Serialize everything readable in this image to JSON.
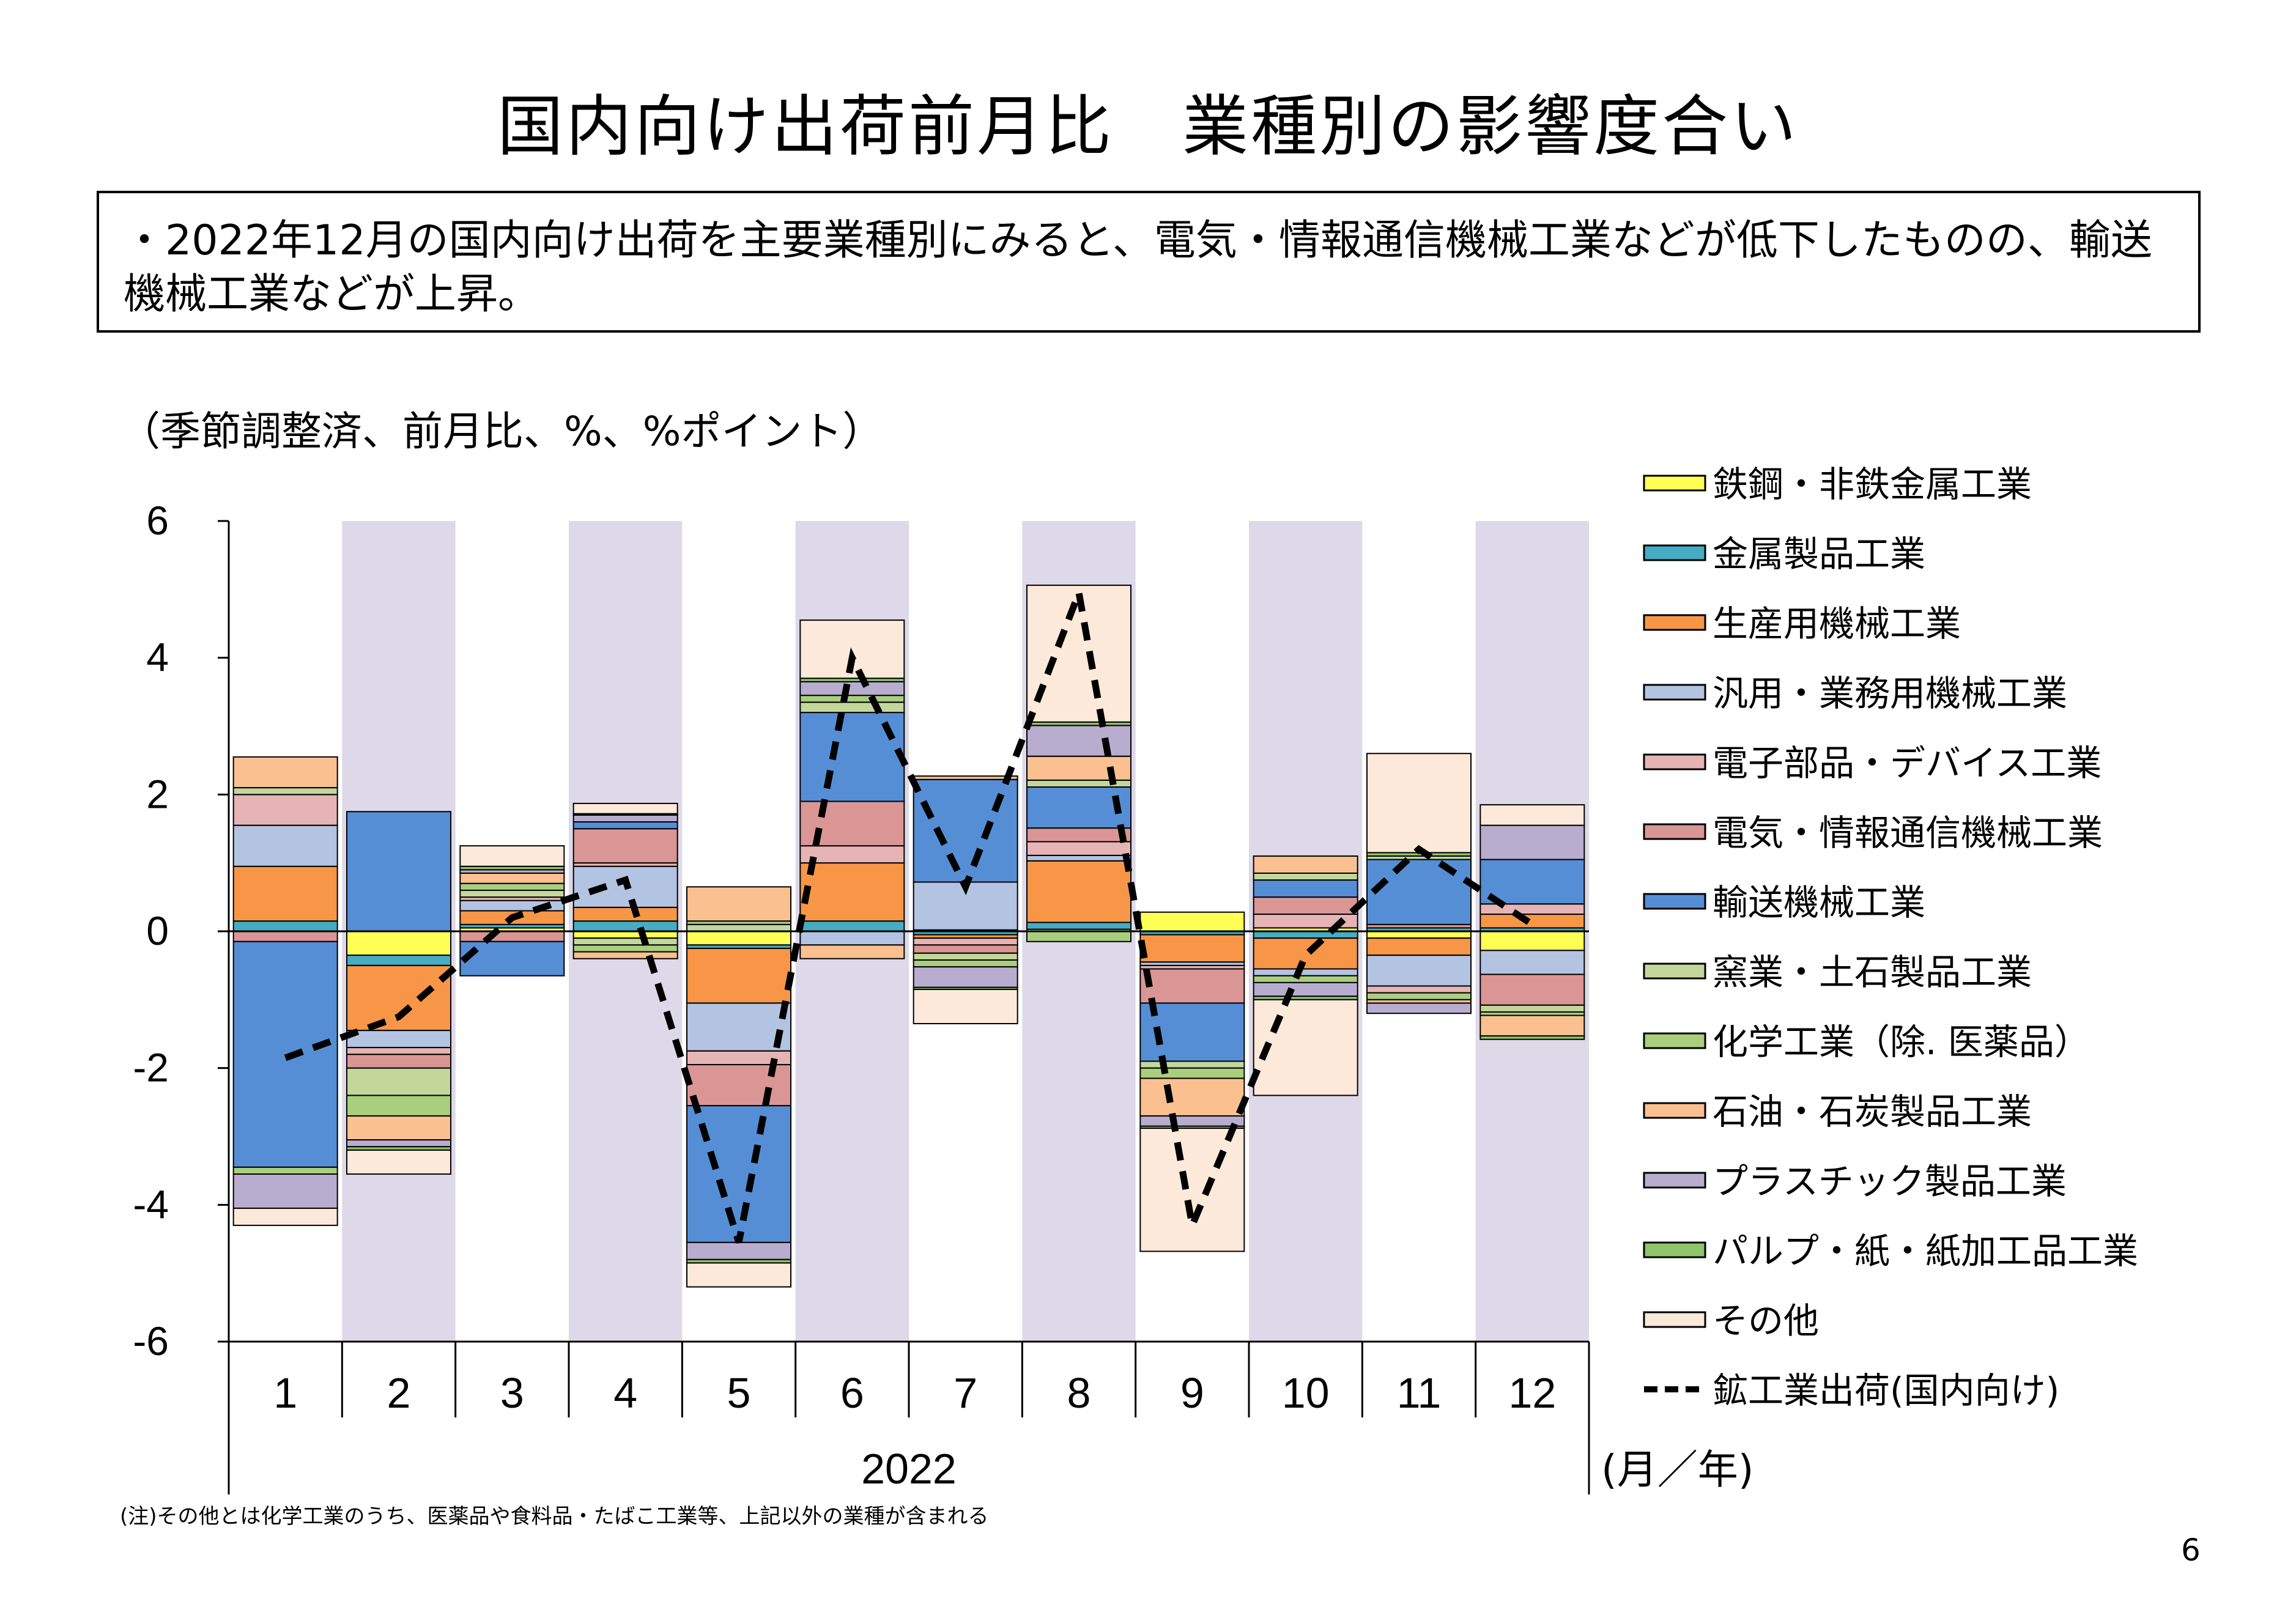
{
  "title": "国内向け出荷前月比　業種別の影響度合い",
  "summary": "・2022年12月の国内向け出荷を主要業種別にみると、電気・情報通信機械工業などが低下したものの、輸送機械工業などが上昇。",
  "unit_label": "（季節調整済、前月比、%、%ポイント）",
  "note": "(注)その他とは化学工業のうち、医薬品や食料品・たばこ工業等、上記以外の業種が含まれる",
  "page_number": "6",
  "chart_data": {
    "type": "bar",
    "stacked": true,
    "categories": [
      "1",
      "2",
      "3",
      "4",
      "5",
      "6",
      "7",
      "8",
      "9",
      "10",
      "11",
      "12"
    ],
    "year_label": "2022",
    "x_unit_label": "(月／年)",
    "ylim": [
      -6,
      6
    ],
    "yticks": [
      6,
      4,
      2,
      0,
      -2,
      -4,
      -6
    ],
    "grid": false,
    "legend_position": "right",
    "shaded_categories": [
      1,
      3,
      5,
      7,
      9,
      11
    ],
    "colors": {
      "shade": "#DDD9E8"
    },
    "series": [
      {
        "name": "鉄鋼・非鉄金属工業",
        "color": "#FFFF55",
        "values": [
          0,
          -0.35,
          0.05,
          -0.1,
          -0.2,
          0,
          0.02,
          0.03,
          0.28,
          0.05,
          -0.1,
          -0.28
        ]
      },
      {
        "name": "金属製品工業",
        "color": "#45ACC4",
        "values": [
          0.15,
          -0.15,
          0.05,
          0.15,
          -0.05,
          0.15,
          -0.05,
          0.1,
          -0.05,
          -0.1,
          0.05,
          0.05
        ]
      },
      {
        "name": "生産用機械工業",
        "color": "#F79646",
        "values": [
          0.8,
          -0.95,
          0.2,
          0.2,
          -0.8,
          0.85,
          -0.05,
          0.9,
          -0.4,
          -0.45,
          -0.25,
          0.2
        ]
      },
      {
        "name": "汎用・業務用機械工業",
        "color": "#B3C4E2",
        "values": [
          0.6,
          -0.25,
          0.15,
          0.6,
          -0.7,
          -0.2,
          0.7,
          0.08,
          -0.05,
          -0.1,
          -0.45,
          -0.35
        ]
      },
      {
        "name": "電子部品・デバイス工業",
        "color": "#E6B4B4",
        "values": [
          0.45,
          -0.1,
          0.05,
          0.05,
          -0.2,
          0.25,
          -0.1,
          0.2,
          -0.05,
          0.2,
          -0.1,
          0.15
        ]
      },
      {
        "name": "電気・情報通信機械工業",
        "color": "#DA9694",
        "values": [
          -0.15,
          -0.2,
          -0.15,
          0.5,
          -0.6,
          0.65,
          -0.12,
          0.2,
          -0.5,
          0.25,
          0.05,
          -0.45
        ]
      },
      {
        "name": "輸送機械工業",
        "color": "#558ED5",
        "values": [
          -3.3,
          1.75,
          -0.5,
          0.1,
          -2.0,
          1.3,
          1.5,
          0.6,
          -0.85,
          0.25,
          0.95,
          0.65
        ]
      },
      {
        "name": "窯業・土石製品工業",
        "color": "#C4D79B",
        "values": [
          0.1,
          -0.4,
          0.1,
          -0.1,
          0.1,
          0.15,
          -0.1,
          0.1,
          -0.1,
          0.1,
          0.05,
          -0.1
        ]
      },
      {
        "name": "化学工業（除. 医薬品）",
        "color": "#A9CF7E",
        "values": [
          -0.1,
          -0.3,
          0.1,
          -0.1,
          0.05,
          0.1,
          -0.1,
          -0.15,
          -0.15,
          -0.1,
          -0.1,
          -0.05
        ]
      },
      {
        "name": "石油・石炭製品工業",
        "color": "#FAC090",
        "values": [
          0.45,
          -0.35,
          0.15,
          -0.1,
          0.5,
          -0.2,
          0.05,
          0.35,
          -0.55,
          0.25,
          -0.05,
          -0.3
        ]
      },
      {
        "name": "プラスチック製品工業",
        "color": "#B8ADCF",
        "values": [
          -0.5,
          -0.1,
          0.05,
          0.1,
          -0.25,
          0.2,
          -0.3,
          0.45,
          -0.15,
          -0.2,
          -0.15,
          0.5
        ]
      },
      {
        "name": "パルプ・紙・紙加工品工業",
        "color": "#8FC46A",
        "values": [
          0,
          -0.05,
          0.05,
          0.02,
          -0.05,
          0.05,
          -0.03,
          0.05,
          -0.03,
          -0.05,
          0.05,
          -0.05
        ]
      },
      {
        "name": "その他",
        "color": "#FDE9D9",
        "values": [
          -0.25,
          -0.35,
          0.3,
          0.15,
          -0.35,
          0.85,
          -0.5,
          2.0,
          -1.8,
          -1.4,
          1.45,
          0.3
        ]
      }
    ],
    "line": {
      "name": "鉱工業出荷(国内向け)",
      "color": "#000000",
      "values": [
        -1.85,
        -1.25,
        0.2,
        0.75,
        -4.55,
        4.0,
        0.65,
        4.95,
        -4.3,
        -0.35,
        1.2,
        0.1
      ]
    }
  }
}
